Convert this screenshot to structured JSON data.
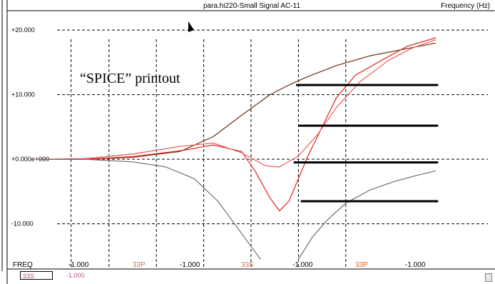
{
  "window": {
    "title": "para.hi220-Small Signal AC-11",
    "x_axis_caption": "Frequency  (Hz)"
  },
  "annotation": {
    "text": "“SPICE” printout"
  },
  "y_tick_labels": [
    "+20.000",
    "+10.000",
    "+0.000e+000",
    "-10.000"
  ],
  "x_axis_row": {
    "first_label": "FREQ",
    "labels": [
      "-1.000",
      "33P",
      "-1.000",
      "33S",
      "-1.000",
      "33P",
      "-1.000"
    ],
    "label_colors": [
      "#000000",
      "#c87850",
      "#000000",
      "#c87850",
      "#000000",
      "#e06020",
      "#000000"
    ]
  },
  "bottom_box": {
    "label": "33S",
    "value": "-1.000"
  },
  "chart_data": {
    "type": "line",
    "title": "para.hi220-Small Signal AC-11",
    "xlabel": "Frequency  (Hz)",
    "ylabel": "",
    "ylim": [
      -17,
      23
    ],
    "xlim": [
      0,
      10
    ],
    "grid": true,
    "y_ticks": [
      20,
      10,
      0,
      -10
    ],
    "x_gridlines": [
      1.2,
      2.0,
      3.0,
      4.0,
      5.0,
      6.0,
      7.0
    ],
    "series": [
      {
        "color": "#6b2f10",
        "x": [
          0.5,
          1.5,
          2.5,
          3.5,
          4.2,
          4.8,
          5.4,
          5.8,
          6.2,
          6.8,
          7.5,
          8.2,
          8.9
        ],
        "y": [
          0.0,
          0.0,
          0.3,
          1.2,
          3.5,
          6.8,
          10.0,
          11.5,
          12.8,
          14.5,
          16.0,
          17.0,
          18.0
        ]
      },
      {
        "color": "#e02020",
        "x": [
          0.5,
          1.5,
          2.5,
          3.5,
          4.2,
          4.8,
          5.1,
          5.4,
          5.6,
          5.8,
          6.0,
          6.2,
          6.5,
          6.8,
          7.2,
          7.8,
          8.3,
          8.9
        ],
        "y": [
          0.0,
          0.0,
          0.4,
          1.3,
          2.2,
          1.2,
          -2.0,
          -6.0,
          -8.0,
          -6.5,
          -3.0,
          0.5,
          5.0,
          9.5,
          13.0,
          15.5,
          17.5,
          18.8
        ]
      },
      {
        "color": "#f05a5a",
        "x": [
          0.5,
          1.5,
          2.5,
          3.5,
          4.2,
          4.8,
          5.3,
          5.6,
          6.0,
          6.4,
          6.8,
          7.3,
          7.9,
          8.4,
          8.9
        ],
        "y": [
          0.0,
          0.1,
          0.8,
          2.0,
          2.5,
          1.0,
          -1.0,
          -1.2,
          0.5,
          3.8,
          8.0,
          12.0,
          15.3,
          17.2,
          18.5
        ]
      },
      {
        "color": "#6e6e6e",
        "x": [
          0.5,
          1.5,
          2.5,
          3.2,
          3.8,
          4.3,
          4.7,
          5.0,
          5.2
        ],
        "y": [
          0.0,
          0.0,
          -0.4,
          -1.2,
          -3.0,
          -6.5,
          -10.5,
          -13.5,
          -15.5
        ]
      },
      {
        "color": "#6e6e6e",
        "x": [
          6.0,
          6.3,
          6.6,
          7.0,
          7.5,
          8.0,
          8.5,
          8.9
        ],
        "y": [
          -15.5,
          -12.0,
          -9.5,
          -6.8,
          -4.8,
          -3.5,
          -2.5,
          -1.8
        ]
      }
    ],
    "annotation_bars": [
      {
        "x_start": 5.95,
        "x_end": 8.95,
        "y": 11.5
      },
      {
        "x_start": 6.0,
        "x_end": 8.95,
        "y": 5.2
      },
      {
        "x_start": 5.9,
        "x_end": 8.95,
        "y": -0.5
      },
      {
        "x_start": 6.05,
        "x_end": 8.95,
        "y": -6.5
      }
    ]
  }
}
